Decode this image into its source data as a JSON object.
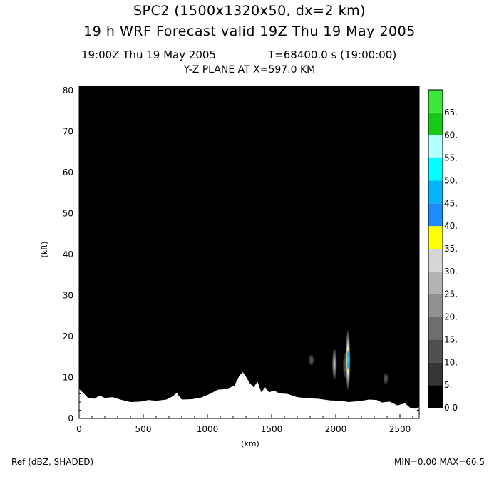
{
  "header": {
    "title_line1": "SPC2 (1500x1320x50, dx=2 km)",
    "title_line2": "19 h  WRF Forecast valid 19Z Thu 19 May 2005",
    "valid_time": "19:00Z Thu 19 May 2005",
    "model_time": "T=68400.0 s (19:00:00)",
    "plane": "Y-Z PLANE AT X=597.0 KM"
  },
  "footer": {
    "field": "Ref (dBZ, SHADED)",
    "minmax": "MIN=0.00 MAX=66.5"
  },
  "chart_data": {
    "type": "heatmap",
    "xlabel": "(km)",
    "ylabel": "(kft)",
    "xlim": [
      0,
      2650
    ],
    "ylim": [
      0,
      81
    ],
    "x_ticks": [
      0,
      500,
      1000,
      1500,
      2000,
      2500
    ],
    "y_ticks": [
      0,
      10,
      20,
      30,
      40,
      50,
      60,
      70,
      80
    ],
    "colorbar": {
      "levels": [
        "0.0",
        "5.",
        "10.",
        "15.",
        "20.",
        "25.",
        "30.",
        "35.",
        "40.",
        "45.",
        "50.",
        "55.",
        "60.",
        "65."
      ],
      "colors": [
        "#000000",
        "#353535",
        "#505050",
        "#6e6e6e",
        "#909090",
        "#b2b2b2",
        "#d6d6d6",
        "#ffff00",
        "#1e8cff",
        "#00b4ff",
        "#00ffff",
        "#b4ffff",
        "#18c818",
        "#3ce63c"
      ]
    },
    "background_value_dbz": 0,
    "terrain_top_kft": [
      [
        0,
        7.2
      ],
      [
        40,
        6.0
      ],
      [
        70,
        5.0
      ],
      [
        120,
        4.8
      ],
      [
        160,
        5.6
      ],
      [
        200,
        5.0
      ],
      [
        260,
        5.2
      ],
      [
        320,
        4.6
      ],
      [
        400,
        4.0
      ],
      [
        480,
        4.1
      ],
      [
        540,
        4.5
      ],
      [
        600,
        4.3
      ],
      [
        680,
        4.6
      ],
      [
        730,
        5.4
      ],
      [
        760,
        6.2
      ],
      [
        800,
        4.6
      ],
      [
        880,
        4.7
      ],
      [
        950,
        5.1
      ],
      [
        1020,
        6.0
      ],
      [
        1080,
        7.0
      ],
      [
        1150,
        7.2
      ],
      [
        1210,
        8.0
      ],
      [
        1250,
        10.5
      ],
      [
        1275,
        11.3
      ],
      [
        1300,
        10.2
      ],
      [
        1330,
        8.6
      ],
      [
        1360,
        7.6
      ],
      [
        1390,
        9.0
      ],
      [
        1420,
        6.4
      ],
      [
        1450,
        7.6
      ],
      [
        1480,
        6.4
      ],
      [
        1520,
        6.8
      ],
      [
        1560,
        6.1
      ],
      [
        1620,
        6.0
      ],
      [
        1700,
        5.2
      ],
      [
        1780,
        4.9
      ],
      [
        1860,
        4.8
      ],
      [
        1960,
        4.4
      ],
      [
        2040,
        4.3
      ],
      [
        2100,
        4.0
      ],
      [
        2180,
        4.2
      ],
      [
        2260,
        4.6
      ],
      [
        2320,
        4.5
      ],
      [
        2360,
        3.9
      ],
      [
        2420,
        4.1
      ],
      [
        2480,
        3.2
      ],
      [
        2540,
        3.7
      ],
      [
        2580,
        2.6
      ],
      [
        2620,
        2.4
      ],
      [
        2650,
        2.8
      ]
    ],
    "storm_cells": [
      {
        "x": 1810,
        "y_bottom": 13,
        "y_top": 15.5,
        "max_dbz": 15
      },
      {
        "x": 1990,
        "y_bottom": 9.5,
        "y_top": 17,
        "max_dbz": 30
      },
      {
        "x": 2075,
        "y_bottom": 10,
        "y_top": 16,
        "max_dbz": 15
      },
      {
        "x": 2095,
        "y_bottom": 7,
        "y_top": 21.5,
        "max_dbz": 55
      },
      {
        "x": 2390,
        "y_bottom": 8.5,
        "y_top": 11,
        "max_dbz": 15
      }
    ]
  }
}
